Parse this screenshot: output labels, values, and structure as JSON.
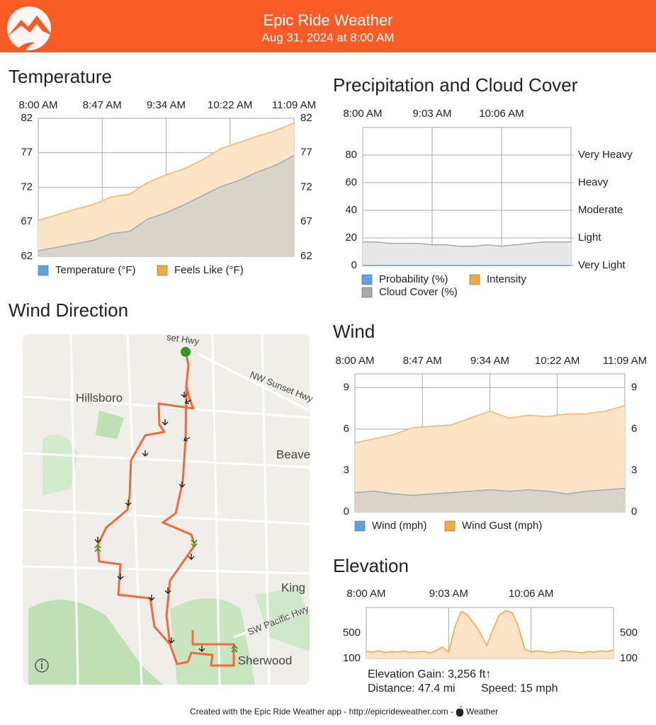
{
  "header": {
    "title": "Epic Ride Weather",
    "subtitle": "Aug 31, 2024 at 8:00 AM"
  },
  "chart_data": [
    {
      "type": "area",
      "title": "Temperature",
      "x_labels": [
        "8:00 AM",
        "8:47 AM",
        "9:34 AM",
        "10:22 AM",
        "11:09 AM"
      ],
      "ylim": [
        62,
        82
      ],
      "yticks": [
        62,
        67,
        72,
        77,
        82
      ],
      "mirror_yticks": true,
      "grid": true,
      "series": [
        {
          "name": "Temperature (°F)",
          "color": "#5ba3de",
          "line": "#9aabb9",
          "fill": "#d9d3c8",
          "values": [
            62.8,
            63.3,
            63.8,
            64.3,
            65.3,
            65.6,
            67.4,
            68.3,
            69.5,
            70.8,
            72.1,
            73.0,
            74.2,
            75.2,
            76.6
          ]
        },
        {
          "name": "Feels Like (°F)",
          "color": "#f5a742",
          "line": "#f2b56a",
          "fill": "#fce4c6",
          "values": [
            67.2,
            68.0,
            68.8,
            69.5,
            70.6,
            71.0,
            72.7,
            73.8,
            74.7,
            76.0,
            77.6,
            78.5,
            79.4,
            80.2,
            81.3
          ]
        }
      ]
    },
    {
      "type": "area",
      "title": "Precipitation and Cloud Cover",
      "x_labels": [
        "8:00 AM",
        "9:03 AM",
        "10:06 AM"
      ],
      "ylim": [
        0,
        100
      ],
      "yticks": [
        0,
        20,
        40,
        60,
        80
      ],
      "y2lim": [
        0,
        100
      ],
      "y2ticks": [
        {
          "value": 0,
          "label": "Very Light"
        },
        {
          "value": 20,
          "label": "Light"
        },
        {
          "value": 40,
          "label": "Moderate"
        },
        {
          "value": 60,
          "label": "Heavy"
        },
        {
          "value": 80,
          "label": "Very Heavy"
        }
      ],
      "grid": true,
      "series": [
        {
          "name": "Probability (%)",
          "color": "#5ba3de",
          "line": "#5ba3de",
          "fill": "none",
          "values": [
            0,
            0,
            0,
            0,
            0,
            0,
            0,
            0,
            0,
            0,
            0,
            0,
            0,
            0,
            0,
            0
          ]
        },
        {
          "name": "Intensity",
          "color": "#f5a742",
          "line": "#f5a742",
          "fill": "none",
          "axis": "y2",
          "values": [
            0,
            0,
            0,
            0,
            0,
            0,
            0,
            0,
            0,
            0,
            0,
            0,
            0,
            0,
            0,
            0
          ]
        },
        {
          "name": "Cloud Cover (%)",
          "color": "#a9a9a9",
          "line": "#a9a9a9",
          "fill": "#e8e8e8",
          "values": [
            17,
            17,
            16,
            16,
            16,
            15,
            15,
            14,
            14,
            15,
            14,
            15,
            16,
            17,
            17,
            17
          ]
        }
      ]
    },
    {
      "type": "area",
      "title": "Wind",
      "x_labels": [
        "8:00 AM",
        "8:47 AM",
        "9:34 AM",
        "10:22 AM",
        "11:09 AM"
      ],
      "ylim": [
        0,
        10
      ],
      "yticks": [
        0,
        3,
        6,
        9
      ],
      "mirror_yticks": true,
      "grid": true,
      "series": [
        {
          "name": "Wind (mph)",
          "color": "#5ba3de",
          "line": "#9aabb9",
          "fill": "#d9d3c8",
          "values": [
            1.4,
            1.5,
            1.3,
            1.2,
            1.3,
            1.4,
            1.5,
            1.6,
            1.5,
            1.6,
            1.5,
            1.3,
            1.5,
            1.6,
            1.7
          ]
        },
        {
          "name": "Wind Gust (mph)",
          "color": "#f5a742",
          "line": "#f2b56a",
          "fill": "#fce4c6",
          "values": [
            5.0,
            5.3,
            5.6,
            6.1,
            6.2,
            6.3,
            6.8,
            7.3,
            6.8,
            7.0,
            6.9,
            7.1,
            7.1,
            7.3,
            7.7
          ]
        }
      ]
    },
    {
      "type": "area",
      "title": "Elevation",
      "x_labels": [
        "8:00 AM",
        "9:03 AM",
        "10:06 AM"
      ],
      "ylim": [
        100,
        900
      ],
      "yticks": [
        100,
        500
      ],
      "mirror_yticks": true,
      "grid": false,
      "series": [
        {
          "name": "Elevation",
          "line": "#f0a545",
          "fill": "#fbe3c5",
          "values": [
            210,
            200,
            220,
            190,
            210,
            200,
            215,
            195,
            205,
            210,
            190,
            220,
            280,
            200,
            600,
            840,
            780,
            650,
            500,
            300,
            560,
            780,
            850,
            820,
            600,
            250,
            200,
            220,
            210,
            190,
            200,
            220,
            210,
            200,
            190,
            210,
            200,
            220,
            210,
            230
          ]
        }
      ],
      "stats": [
        "Elevation Gain: 3,256 ft↑",
        "Distance: 47.4 mi",
        "Speed: 15 mph"
      ]
    }
  ],
  "map": {
    "title": "Wind Direction",
    "labels": [
      "Hillsboro",
      "Beave",
      "King",
      "Sherwood",
      "NW Sunset Hwy",
      "SW Pacific Hwy",
      "set Hwy"
    ]
  },
  "footer": {
    "text": "Created with the Epic Ride Weather app - http://epicrideweather.com -",
    "brand": "Weather"
  }
}
